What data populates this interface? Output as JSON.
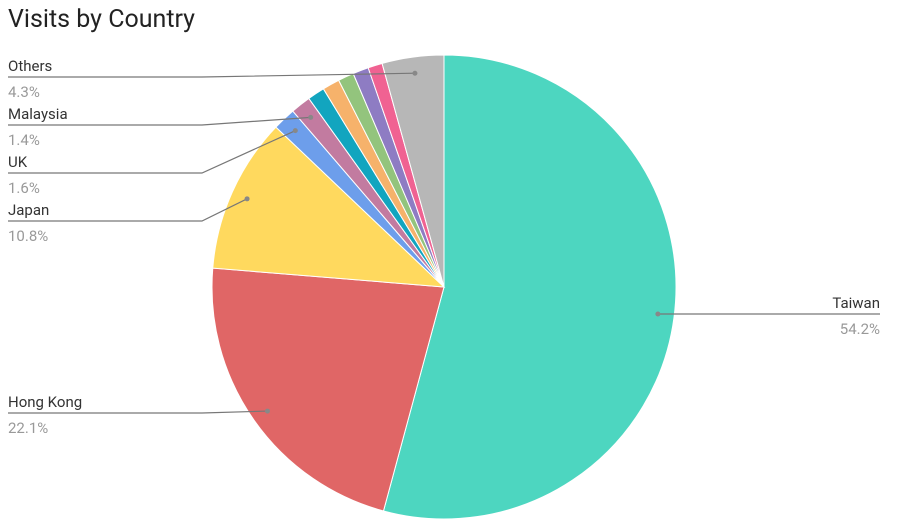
{
  "chart_data": {
    "type": "pie",
    "title": "Visits by Country",
    "categories": [
      "Taiwan",
      "Hong Kong",
      "Japan",
      "UK",
      "Malaysia",
      null,
      null,
      null,
      null,
      null,
      "Others"
    ],
    "values": [
      54.2,
      22.1,
      10.8,
      1.6,
      1.4,
      1.2,
      1.2,
      1.1,
      1.1,
      1.0,
      4.3
    ],
    "value_labels": [
      "54.2%",
      "22.1%",
      "10.8%",
      "1.6%",
      "1.4%",
      null,
      null,
      null,
      null,
      null,
      "4.3%"
    ],
    "colors": [
      "#4dd6c0",
      "#e06666",
      "#ffd95e",
      "#6d9eeb",
      "#c27ba0",
      "#12a5bf",
      "#f6b26b",
      "#93c47d",
      "#8e7cc3",
      "#f06292",
      "#b7b7b7"
    ]
  }
}
